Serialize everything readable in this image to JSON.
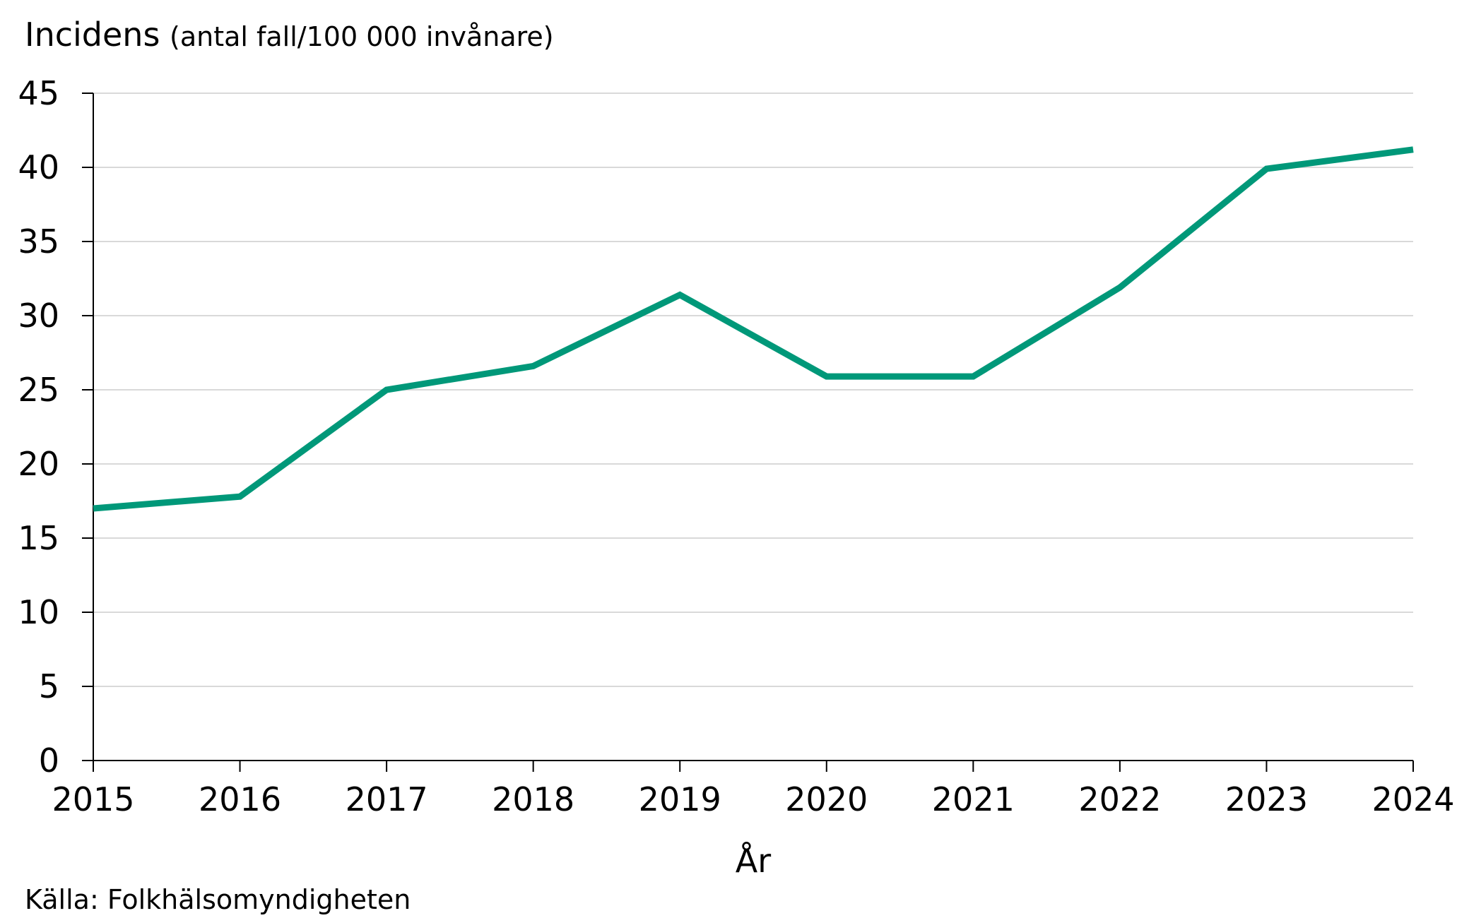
{
  "chart_data": {
    "type": "line",
    "ylabel_main": "Incidens",
    "ylabel_sub": "(antal fall/100 000 invånare)",
    "xlabel": "År",
    "source": "Källa: Folkhälsomyndigheten",
    "x": [
      "2015",
      "2016",
      "2017",
      "2018",
      "2019",
      "2020",
      "2021",
      "2022",
      "2023",
      "2024"
    ],
    "series": [
      {
        "name": "Incidens",
        "color": "#009879",
        "values": [
          17.0,
          17.8,
          25.0,
          26.6,
          31.4,
          25.9,
          25.9,
          31.9,
          39.9,
          41.2
        ]
      }
    ],
    "ylim": [
      0,
      45
    ],
    "yticks": [
      0,
      5,
      10,
      15,
      20,
      25,
      30,
      35,
      40,
      45
    ],
    "grid": true
  }
}
